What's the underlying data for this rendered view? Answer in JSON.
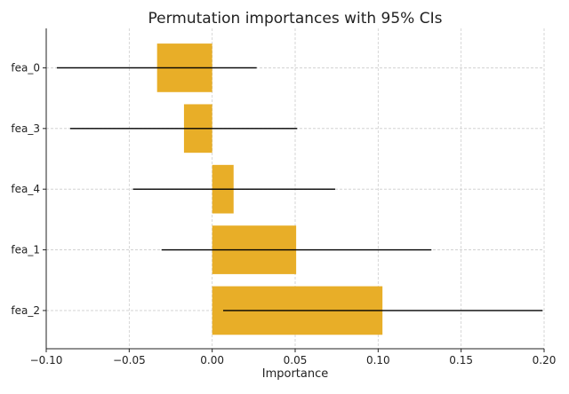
{
  "chart_data": {
    "type": "bar",
    "orientation": "horizontal",
    "title": "Permutation importances with 95% CIs",
    "xlabel": "Importance",
    "ylabel": "",
    "categories": [
      "fea_0",
      "fea_3",
      "fea_4",
      "fea_1",
      "fea_2"
    ],
    "values": [
      -0.0332,
      -0.017,
      0.0129,
      0.0506,
      0.1026
    ],
    "ci_low": [
      -0.0936,
      -0.0856,
      -0.0477,
      -0.0305,
      0.0066
    ],
    "ci_high": [
      0.0268,
      0.0512,
      0.0741,
      0.1321,
      0.1991
    ],
    "xlim": [
      -0.1,
      0.2
    ],
    "xticks": [
      -0.1,
      -0.05,
      0.0,
      0.05,
      0.1,
      0.15,
      0.2
    ],
    "xtick_labels": [
      "−0.10",
      "−0.05",
      "0.00",
      "0.05",
      "0.10",
      "0.15",
      "0.20"
    ],
    "grid": true,
    "bar_color": "#e8ae28",
    "errorbar_color": "#000000"
  }
}
